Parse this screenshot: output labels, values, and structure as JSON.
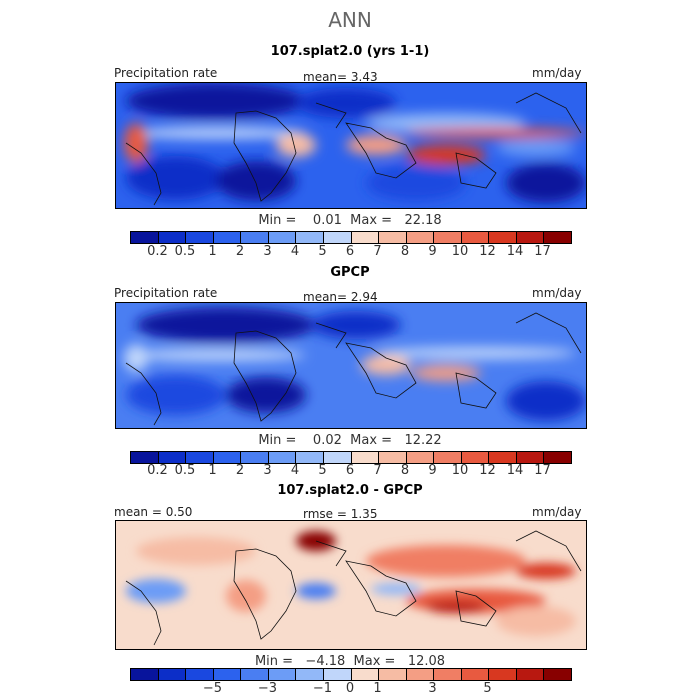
{
  "title": "ANN",
  "panels": [
    {
      "subtitle": "107.splat2.0 (yrs 1-1)",
      "left_label": "Precipitation rate",
      "center_label": "mean=    3.43",
      "right_label": "mm/day",
      "minmax": "Min =    0.01  Max =   22.18"
    },
    {
      "subtitle": "GPCP",
      "left_label": "Precipitation rate",
      "center_label": "mean=    2.94",
      "right_label": "mm/day",
      "minmax": "Min =    0.02  Max =   12.22"
    },
    {
      "subtitle": "107.splat2.0 - GPCP",
      "left_label": "mean =    0.50",
      "center_label": "rmse =    1.35",
      "right_label": "mm/day",
      "minmax": "Min =   −4.18  Max =   12.08"
    }
  ],
  "colorbar_precip": {
    "colors": [
      "#08149c",
      "#0c2ec8",
      "#1a48e0",
      "#2c62ee",
      "#4a7ef2",
      "#6c9cf6",
      "#92b8f8",
      "#c0d6fa",
      "#f8dccc",
      "#f6bca4",
      "#f49e84",
      "#f07e64",
      "#e85a40",
      "#d83820",
      "#b81810",
      "#880000"
    ],
    "labels": [
      "0.2",
      "0.5",
      "1",
      "2",
      "3",
      "4",
      "5",
      "6",
      "7",
      "8",
      "9",
      "10",
      "12",
      "14",
      "17"
    ]
  },
  "colorbar_diff": {
    "colors": [
      "#08149c",
      "#0c2ec8",
      "#1a48e0",
      "#2c62ee",
      "#4a7ef2",
      "#6c9cf6",
      "#92b8f8",
      "#c0d6fa",
      "#f8dccc",
      "#f6bca4",
      "#f49e84",
      "#f07e64",
      "#e85a40",
      "#d83820",
      "#b81810",
      "#880000"
    ],
    "labels": [
      "−5",
      "−3",
      "−1",
      "0",
      "1",
      "3",
      "5"
    ]
  }
}
